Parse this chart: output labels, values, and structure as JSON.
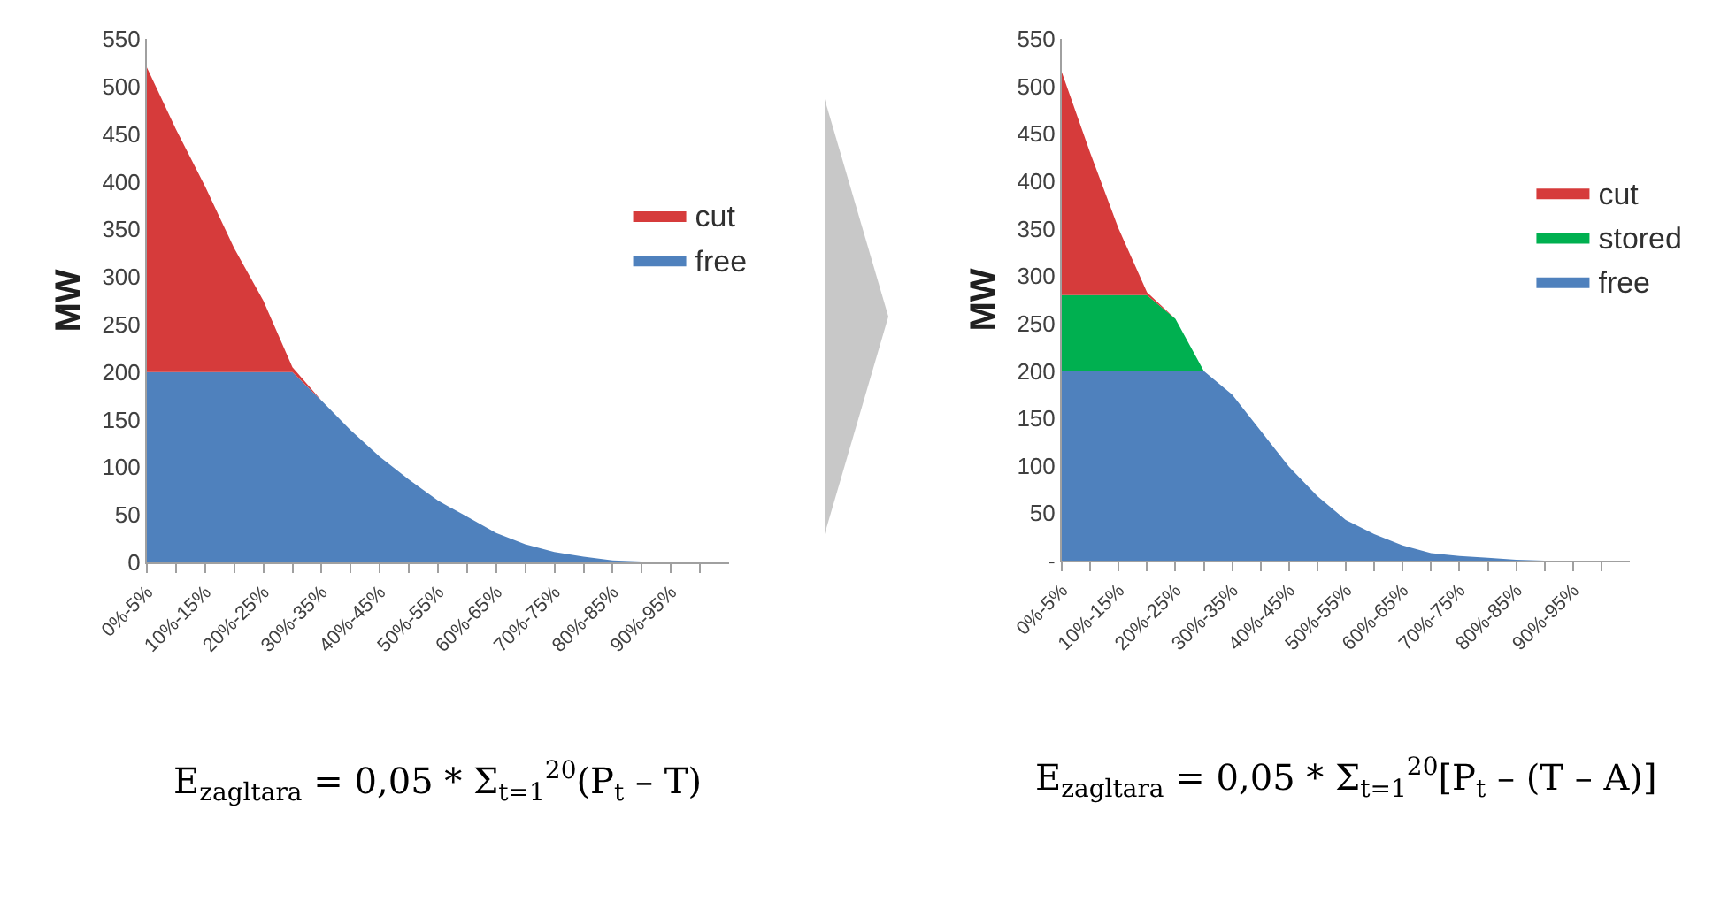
{
  "chart_data": [
    {
      "type": "area",
      "stacked": true,
      "ylabel": "MW",
      "categories": [
        "0%-5%",
        null,
        "10%-15%",
        null,
        "20%-25%",
        null,
        "30%-35%",
        null,
        "40%-45%",
        null,
        "50%-55%",
        null,
        "60%-65%",
        null,
        "70%-75%",
        null,
        "80%-85%",
        null,
        "90%-95%",
        null
      ],
      "series": [
        {
          "name": "free",
          "color": "#4f81bd",
          "values": [
            200,
            200,
            200,
            200,
            200,
            200,
            170,
            139,
            111,
            87,
            65,
            48,
            31,
            19,
            11,
            6,
            2,
            1,
            0,
            0
          ]
        },
        {
          "name": "cut",
          "color": "#d63b3b",
          "values": [
            320,
            255,
            195,
            130,
            75,
            5,
            0,
            0,
            0,
            0,
            0,
            0,
            0,
            0,
            0,
            0,
            0,
            0,
            0,
            0
          ]
        }
      ],
      "ylim": [
        0,
        550
      ],
      "yticks": [
        0,
        50,
        100,
        150,
        200,
        250,
        300,
        350,
        400,
        450,
        500,
        550
      ],
      "grid": false,
      "legend": "right",
      "annotations": [
        "E$_{zagltara}$ = 0,05 * Σ$_{t=1}$$^{20}$(P$_{t}$ – T)"
      ]
    },
    {
      "type": "area",
      "stacked": true,
      "ylabel": "MW",
      "categories": [
        "0%-5%",
        null,
        "10%-15%",
        null,
        "20%-25%",
        null,
        "30%-35%",
        null,
        "40%-45%",
        null,
        "50%-55%",
        null,
        "60%-65%",
        null,
        "70%-75%",
        null,
        "80%-85%",
        null,
        "90%-95%",
        null
      ],
      "series": [
        {
          "name": "free",
          "color": "#4f81bd",
          "values": [
            200,
            200,
            200,
            200,
            200,
            200,
            175,
            137,
            99,
            68,
            43,
            28,
            16,
            8,
            5,
            3,
            1,
            0,
            0,
            0
          ]
        },
        {
          "name": "stored",
          "color": "#00b050",
          "values": [
            80,
            80,
            80,
            80,
            55,
            0,
            0,
            0,
            0,
            0,
            0,
            0,
            0,
            0,
            0,
            0,
            0,
            0,
            0,
            0
          ]
        },
        {
          "name": "cut",
          "color": "#d63b3b",
          "values": [
            235,
            150,
            70,
            3,
            0,
            0,
            0,
            0,
            0,
            0,
            0,
            0,
            0,
            0,
            0,
            0,
            0,
            0,
            0,
            0
          ]
        }
      ],
      "ylim": [
        0,
        550
      ],
      "yticks": [
        {
          "value": 0,
          "label": "-"
        },
        50,
        100,
        150,
        200,
        250,
        300,
        350,
        400,
        450,
        500,
        550
      ],
      "grid": false,
      "legend": "right",
      "annotations": [
        "E$_{zagltara}$ = 0,05 * Σ$_{t=1}$$^{20}$[P$_{t}$ – (T – A)]"
      ]
    }
  ]
}
